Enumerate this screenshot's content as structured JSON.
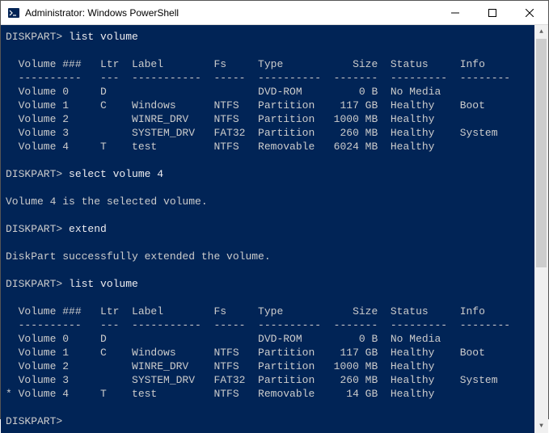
{
  "window": {
    "title": "Administrator: Windows PowerShell"
  },
  "colors": {
    "console_bg": "#012456",
    "console_fg": "#cccccc",
    "prompt_fg": "#eeedf0"
  },
  "session": {
    "prompt": "DISKPART>",
    "commands": [
      {
        "cmd": "list volume"
      },
      {
        "cmd": "select volume 4",
        "response": "Volume 4 is the selected volume."
      },
      {
        "cmd": "extend",
        "response": "DiskPart successfully extended the volume."
      },
      {
        "cmd": "list volume"
      }
    ],
    "table_header": {
      "cols": [
        "Volume ###",
        "Ltr",
        "Label",
        "Fs",
        "Type",
        "Size",
        "Status",
        "Info"
      ],
      "dashes": [
        "----------",
        "---",
        "-----------",
        "-----",
        "----------",
        "-------",
        "---------",
        "--------"
      ]
    },
    "volumes_before": [
      {
        "sel": " ",
        "vol": "Volume 0",
        "ltr": "D",
        "label": "",
        "fs": "",
        "type": "DVD-ROM",
        "size": "0 B",
        "status": "No Media",
        "info": ""
      },
      {
        "sel": " ",
        "vol": "Volume 1",
        "ltr": "C",
        "label": "Windows",
        "fs": "NTFS",
        "type": "Partition",
        "size": "117 GB",
        "status": "Healthy",
        "info": "Boot"
      },
      {
        "sel": " ",
        "vol": "Volume 2",
        "ltr": "",
        "label": "WINRE_DRV",
        "fs": "NTFS",
        "type": "Partition",
        "size": "1000 MB",
        "status": "Healthy",
        "info": ""
      },
      {
        "sel": " ",
        "vol": "Volume 3",
        "ltr": "",
        "label": "SYSTEM_DRV",
        "fs": "FAT32",
        "type": "Partition",
        "size": "260 MB",
        "status": "Healthy",
        "info": "System"
      },
      {
        "sel": " ",
        "vol": "Volume 4",
        "ltr": "T",
        "label": "test",
        "fs": "NTFS",
        "type": "Removable",
        "size": "6024 MB",
        "status": "Healthy",
        "info": ""
      }
    ],
    "volumes_after": [
      {
        "sel": " ",
        "vol": "Volume 0",
        "ltr": "D",
        "label": "",
        "fs": "",
        "type": "DVD-ROM",
        "size": "0 B",
        "status": "No Media",
        "info": ""
      },
      {
        "sel": " ",
        "vol": "Volume 1",
        "ltr": "C",
        "label": "Windows",
        "fs": "NTFS",
        "type": "Partition",
        "size": "117 GB",
        "status": "Healthy",
        "info": "Boot"
      },
      {
        "sel": " ",
        "vol": "Volume 2",
        "ltr": "",
        "label": "WINRE_DRV",
        "fs": "NTFS",
        "type": "Partition",
        "size": "1000 MB",
        "status": "Healthy",
        "info": ""
      },
      {
        "sel": " ",
        "vol": "Volume 3",
        "ltr": "",
        "label": "SYSTEM_DRV",
        "fs": "FAT32",
        "type": "Partition",
        "size": "260 MB",
        "status": "Healthy",
        "info": "System"
      },
      {
        "sel": "*",
        "vol": "Volume 4",
        "ltr": "T",
        "label": "test",
        "fs": "NTFS",
        "type": "Removable",
        "size": "14 GB",
        "status": "Healthy",
        "info": ""
      }
    ],
    "final_prompt": "DISKPART>"
  },
  "layout": {
    "col_widths": {
      "sel": 2,
      "vol": 10,
      "gap1": 3,
      "ltr": 3,
      "gap2": 2,
      "label": 11,
      "gap3": 2,
      "fs": 5,
      "gap4": 2,
      "type": 10,
      "gap5": 2,
      "size": 7,
      "gap6": 2,
      "status": 9,
      "gap7": 2,
      "info": 8
    }
  }
}
